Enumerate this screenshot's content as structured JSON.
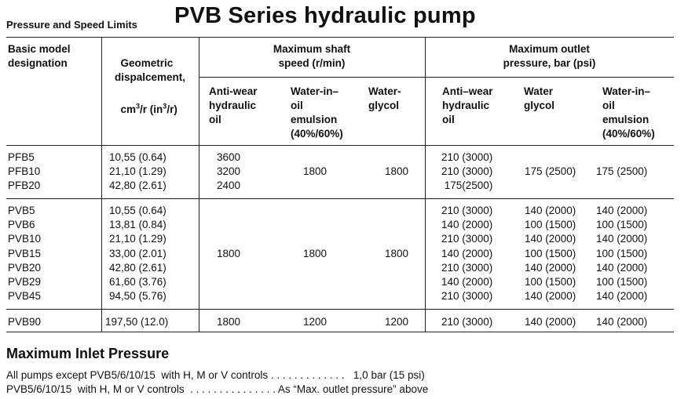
{
  "section_title": "Pressure and Speed Limits",
  "main_title": "PVB Series hydraulic pump",
  "headers": {
    "model": "Basic model\ndesignation",
    "displacement_line1": "Geometric\ndispalcement,",
    "displacement_unit_pre": "cm",
    "displacement_unit_sup": "3",
    "displacement_unit_mid": "/r (in",
    "displacement_unit_sup2": "3",
    "displacement_unit_post": "/r)",
    "shaft_speed": "Maximum shaft\nspeed (r/min)",
    "outlet_pressure": "Maximum outlet\npressure, bar (psi)",
    "speed_sub": [
      "Anti-wear\nhydraulic\noil",
      "Water-in–\noil\nemulsion\n(40%/60%)",
      "Water-\nglycol"
    ],
    "pressure_sub": [
      "Anti–wear\nhydraulic\noil",
      "Water\nglycol",
      "Water-in–\noil\nemulsion\n(40%/60%)"
    ]
  },
  "groups": [
    {
      "models": [
        "PFB5",
        "PFB10",
        "PFB20"
      ],
      "displacement": [
        "10,55 (0.64)",
        "21,10 (1.29)",
        "42,80 (2.61)"
      ],
      "speed_antiwear": [
        "3600",
        "3200",
        "2400"
      ],
      "speed_emulsion": "1800",
      "speed_glycol": "1800",
      "pressure_antiwear": [
        "210 (3000)",
        "210 (3000)",
        "175(2500)"
      ],
      "pressure_glycol": "175 (2500)",
      "pressure_emulsion": "175 (2500)"
    },
    {
      "models": [
        "PVB5",
        "PVB6",
        "PVB10",
        "PVB15",
        "PVB20",
        "PVB29",
        "PVB45"
      ],
      "displacement": [
        "10,55 (0.64)",
        "13,81 (0.84)",
        "21,10 (1.29)",
        "33,00 (2.01)",
        "42,80 (2.61)",
        "61,60 (3.76)",
        "94,50 (5.76)"
      ],
      "speed_antiwear": "1800",
      "speed_emulsion": "1800",
      "speed_glycol": "1800",
      "pressure_antiwear": [
        "210 (3000)",
        "140 (2000)",
        "210 (3000)",
        "140 (2000)",
        "210 (3000)",
        "140 (2000)",
        "210 (3000)"
      ],
      "pressure_glycol": [
        "140 (2000)",
        "100 (1500)",
        "140 (2000)",
        "100 (1500)",
        "140 (2000)",
        "100 (1500)",
        "140 (2000)"
      ],
      "pressure_emulsion": [
        "140 (2000)",
        "100 (1500)",
        "140 (2000)",
        "100 (1500)",
        "140 (2000)",
        "100 (1500)",
        "140 (2000)"
      ]
    },
    {
      "models": [
        "PVB90"
      ],
      "displacement": [
        "197,50 (12.0)"
      ],
      "speed_antiwear": "1800",
      "speed_emulsion": "1200",
      "speed_glycol": "1200",
      "pressure_antiwear": [
        "210 (3000)"
      ],
      "pressure_glycol": "140 (2000)",
      "pressure_emulsion": "140 (2000)"
    }
  ],
  "inlet": {
    "title": "Maximum Inlet Pressure",
    "line1": "All pumps except PVB5/6/10/15  with H, M or V controls . . . . . . . . . . . . .   1,0 bar (15 psi)",
    "line2": "PVB5/6/10/15  with H, M or V controls  . . . . . . . . . . . . . . . As “Max. outlet pressure” above"
  }
}
